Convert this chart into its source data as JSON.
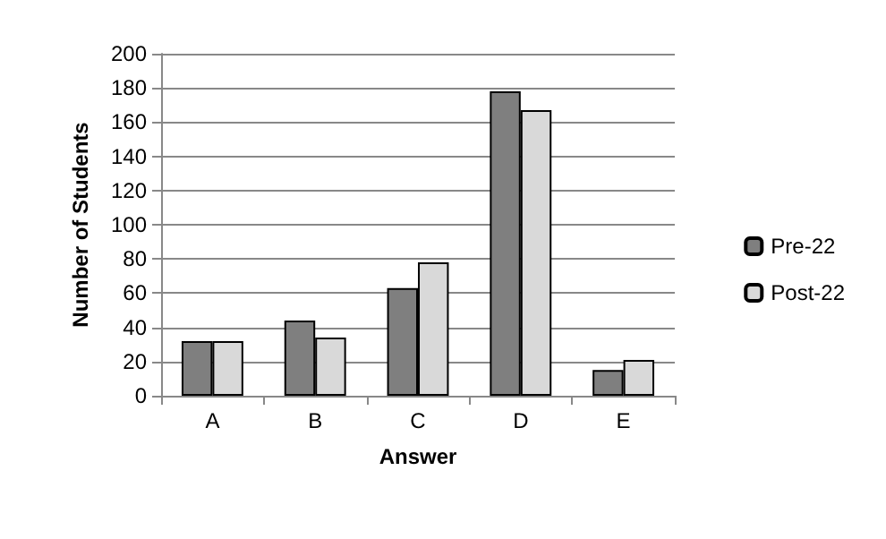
{
  "chart_data": {
    "type": "bar",
    "xlabel": "Answer",
    "ylabel": "Number of Students",
    "categories": [
      "A",
      "B",
      "C",
      "D",
      "E"
    ],
    "series": [
      {
        "name": "Pre-22",
        "color": "#7f7f7f",
        "values": [
          32,
          44,
          63,
          178,
          15
        ]
      },
      {
        "name": "Post-22",
        "color": "#d9d9d9",
        "values": [
          32,
          34,
          78,
          167,
          21
        ]
      }
    ],
    "ylim": [
      0,
      200
    ],
    "yticks": [
      0,
      20,
      40,
      60,
      80,
      100,
      120,
      140,
      160,
      180,
      200
    ],
    "grid": "y",
    "legend": "right"
  }
}
